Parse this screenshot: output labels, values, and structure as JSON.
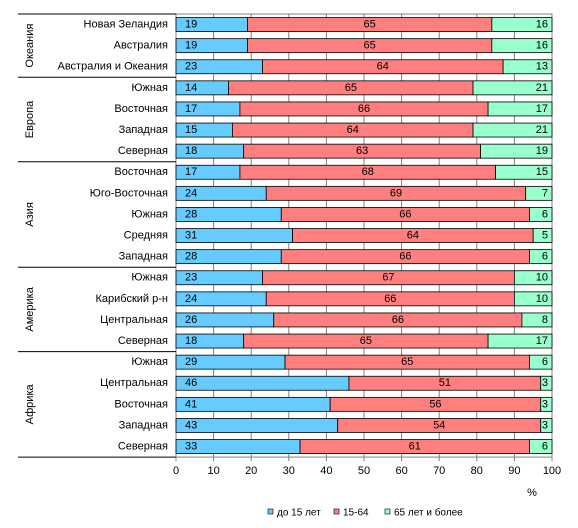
{
  "chart_data": {
    "type": "bar",
    "orientation": "horizontal",
    "stacked": true,
    "xlabel": "%",
    "xlim": [
      0,
      100
    ],
    "xticks": [
      0,
      10,
      20,
      30,
      40,
      50,
      60,
      70,
      80,
      90,
      100
    ],
    "legend_position": "bottom",
    "series": [
      {
        "name": "до 15 лет",
        "color": "#66ccff"
      },
      {
        "name": "15-64",
        "color": "#ff7f7f"
      },
      {
        "name": "65 лет и более",
        "color": "#99ffcc"
      }
    ],
    "groups": [
      {
        "name": "Океания",
        "rows": [
          {
            "label": "Новая Зеландия",
            "values": [
              19,
              65,
              16
            ]
          },
          {
            "label": "Австралия",
            "values": [
              19,
              65,
              16
            ]
          },
          {
            "label": "Австралия и Океания",
            "values": [
              23,
              64,
              13
            ]
          }
        ]
      },
      {
        "name": "Европа",
        "rows": [
          {
            "label": "Южная",
            "values": [
              14,
              65,
              21
            ]
          },
          {
            "label": "Восточная",
            "values": [
              17,
              66,
              17
            ]
          },
          {
            "label": "Западная",
            "values": [
              15,
              64,
              21
            ]
          },
          {
            "label": "Северная",
            "values": [
              18,
              63,
              19
            ]
          }
        ]
      },
      {
        "name": "Азия",
        "rows": [
          {
            "label": "Восточная",
            "values": [
              17,
              68,
              15
            ]
          },
          {
            "label": "Юго-Восточная",
            "values": [
              24,
              69,
              7
            ]
          },
          {
            "label": "Южная",
            "values": [
              28,
              66,
              6
            ]
          },
          {
            "label": "Средняя",
            "values": [
              31,
              64,
              5
            ]
          },
          {
            "label": "Западная",
            "values": [
              28,
              66,
              6
            ]
          }
        ]
      },
      {
        "name": "Америка",
        "rows": [
          {
            "label": "Южная",
            "values": [
              23,
              67,
              10
            ]
          },
          {
            "label": "Карибский р-н",
            "values": [
              24,
              66,
              10
            ]
          },
          {
            "label": "Центральная",
            "values": [
              26,
              66,
              8
            ]
          },
          {
            "label": "Северная",
            "values": [
              18,
              65,
              17
            ]
          }
        ]
      },
      {
        "name": "Африка",
        "rows": [
          {
            "label": "Южная",
            "values": [
              29,
              65,
              6
            ]
          },
          {
            "label": "Центральная",
            "values": [
              46,
              51,
              3
            ]
          },
          {
            "label": "Восточная",
            "values": [
              41,
              56,
              3
            ]
          },
          {
            "label": "Западная",
            "values": [
              43,
              54,
              3
            ]
          },
          {
            "label": "Северная",
            "values": [
              33,
              61,
              6
            ]
          }
        ]
      }
    ]
  }
}
